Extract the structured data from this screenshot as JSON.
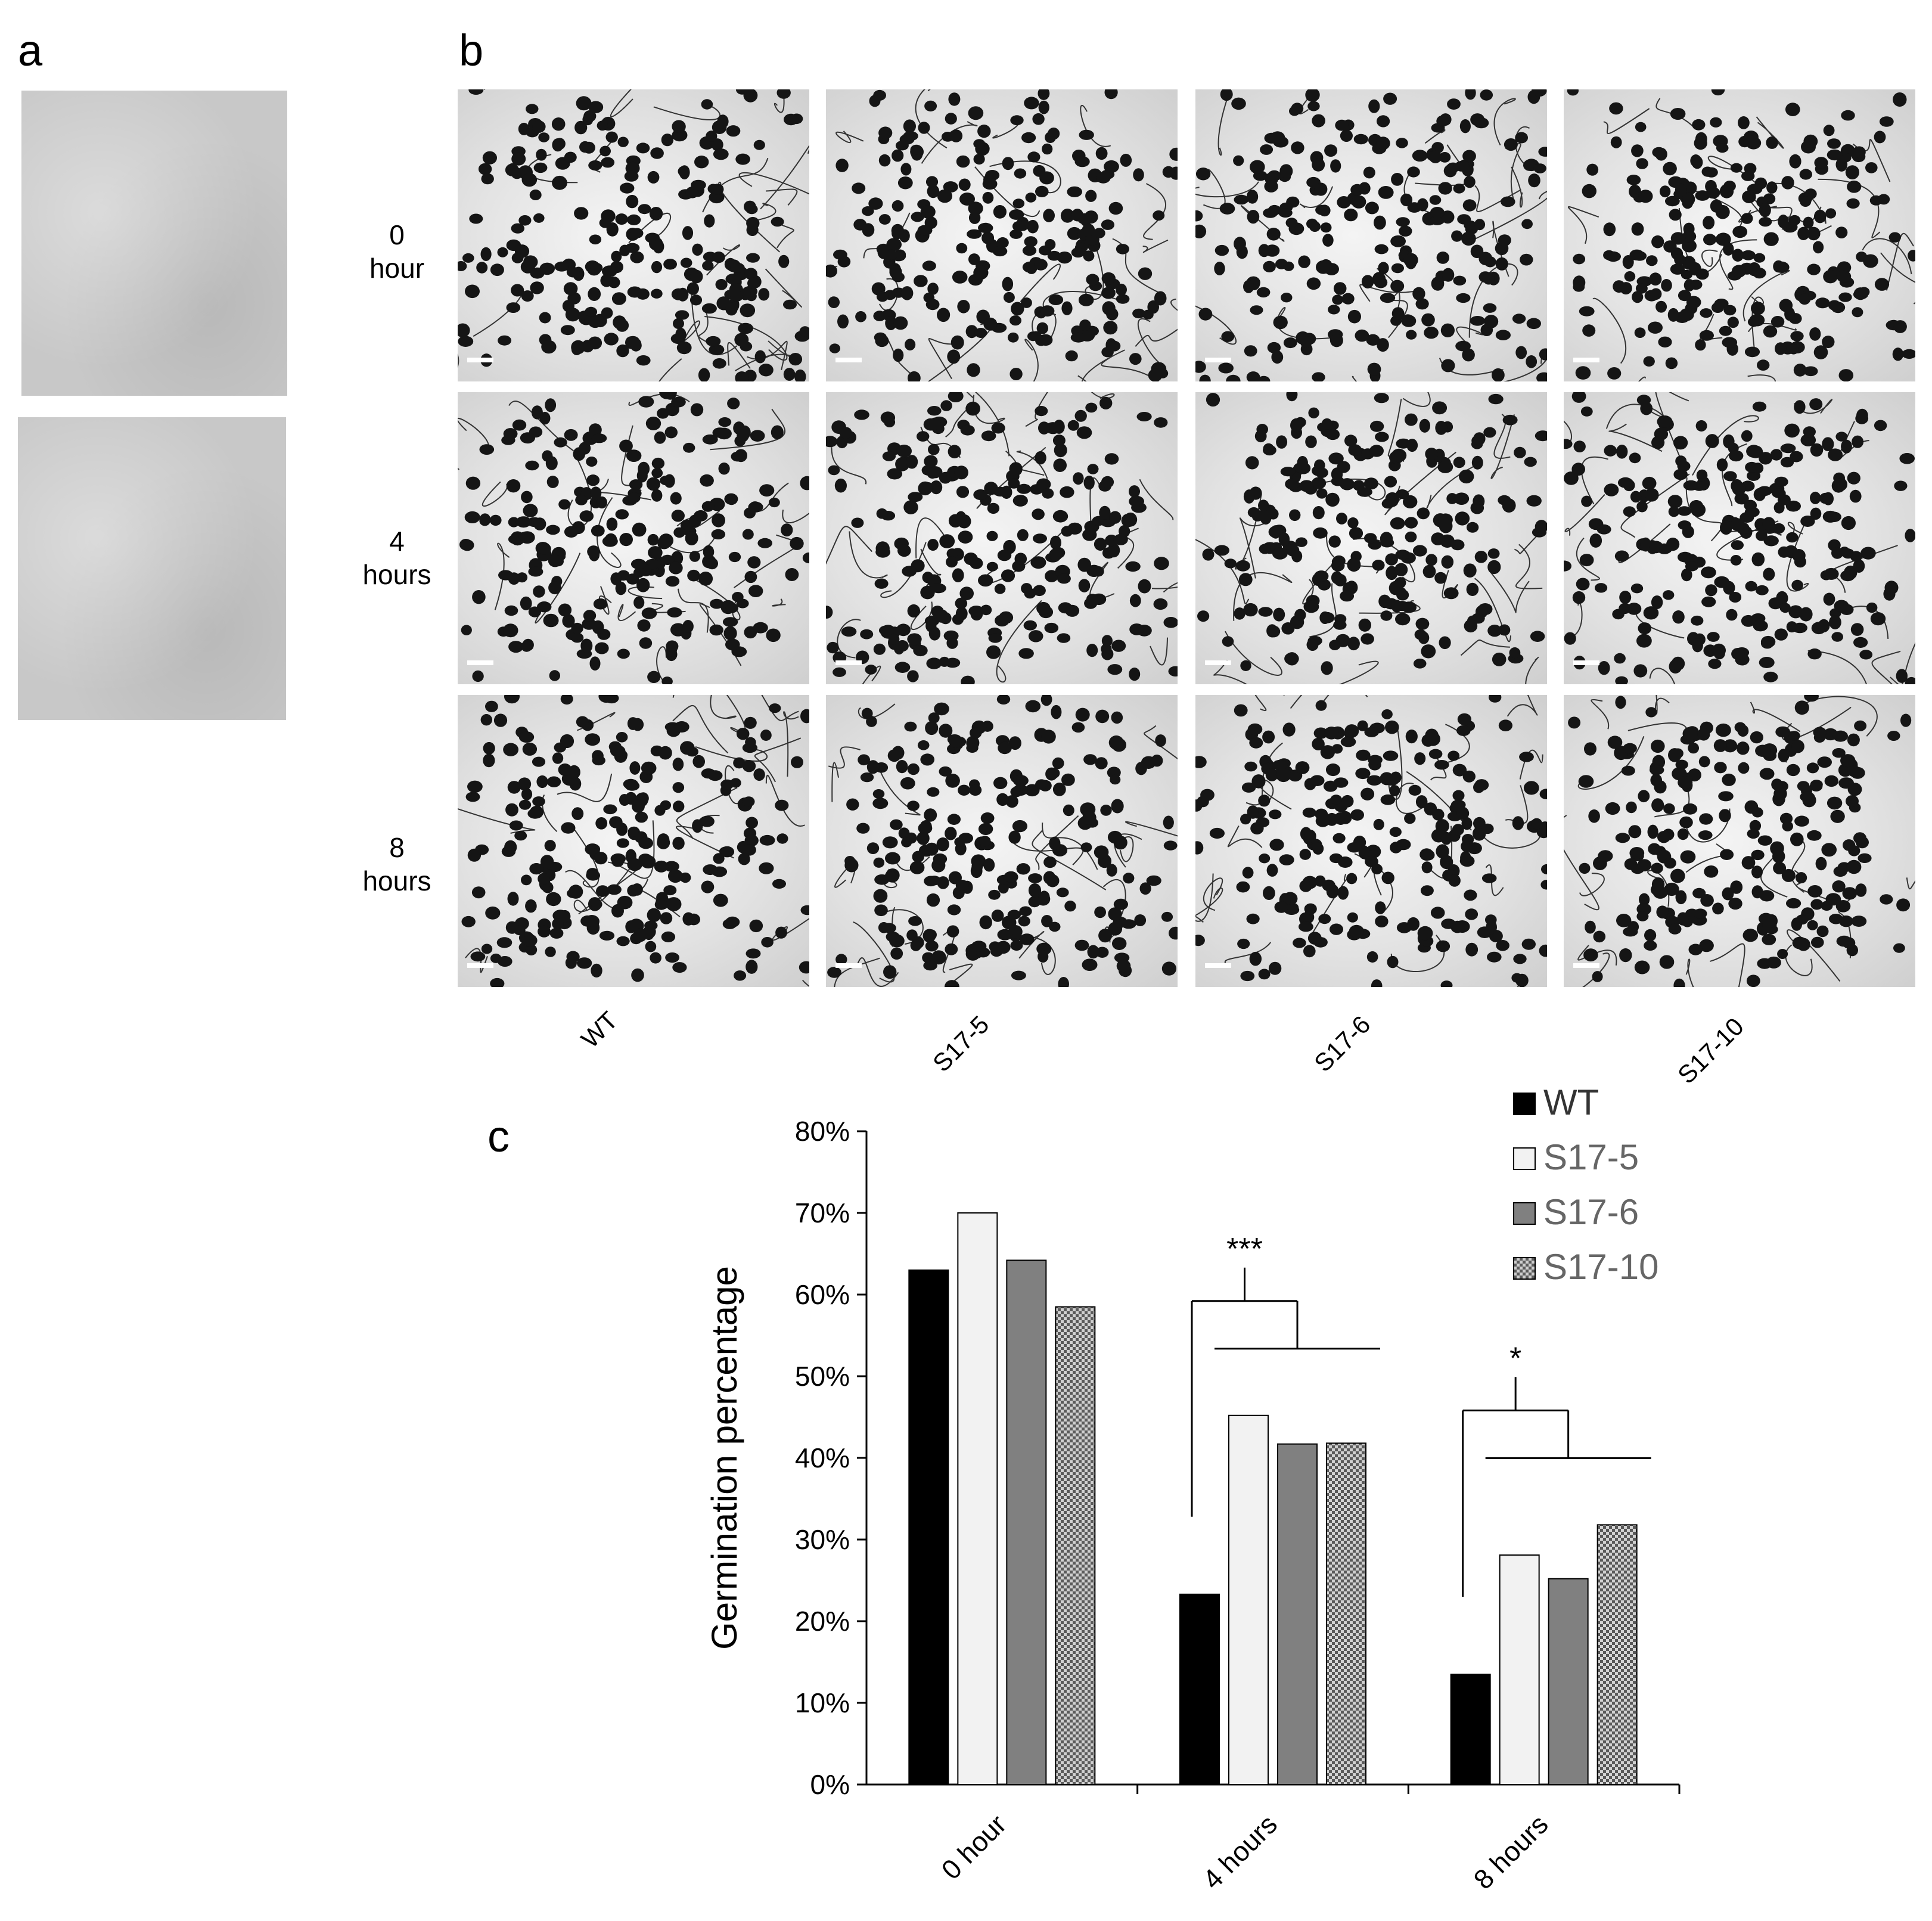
{
  "panels": {
    "a": "a",
    "b": "b",
    "c": "c"
  },
  "panel_b": {
    "rows": [
      "0\nhour",
      "4\nhours",
      "8\nhours"
    ],
    "row_lines": [
      [
        "0",
        "hour"
      ],
      [
        "4",
        "hours"
      ],
      [
        "8",
        "hours"
      ]
    ],
    "columns": [
      "WT",
      "S17-5",
      "S17-6",
      "S17-10"
    ]
  },
  "colors": {
    "WT": "#000000",
    "S17-5": "#f2f2f2",
    "S17-6": "#808080",
    "S17-10": "#a6a6a6",
    "arrow_green": "#22b14c",
    "arrow_red": "#e8171e"
  },
  "chart_data": {
    "type": "bar",
    "categories": [
      "0 hour",
      "4 hours",
      "8 hours"
    ],
    "series": [
      {
        "name": "WT",
        "values": [
          63,
          23.3,
          13.5
        ]
      },
      {
        "name": "S17-5",
        "values": [
          70,
          45.2,
          28.1
        ]
      },
      {
        "name": "S17-6",
        "values": [
          64.2,
          41.7,
          25.2
        ]
      },
      {
        "name": "S17-10",
        "values": [
          58.5,
          41.8,
          31.8
        ]
      }
    ],
    "title": "",
    "xlabel": "",
    "ylabel": "Germination percentage",
    "ylim": [
      0,
      80
    ],
    "yticks": [
      "0%",
      "10%",
      "20%",
      "30%",
      "40%",
      "50%",
      "60%",
      "70%",
      "80%"
    ],
    "significance": [
      {
        "category": "4 hours",
        "label": "***"
      },
      {
        "category": "8 hours",
        "label": "*"
      }
    ],
    "legend_position": "top-right",
    "grid": false
  }
}
